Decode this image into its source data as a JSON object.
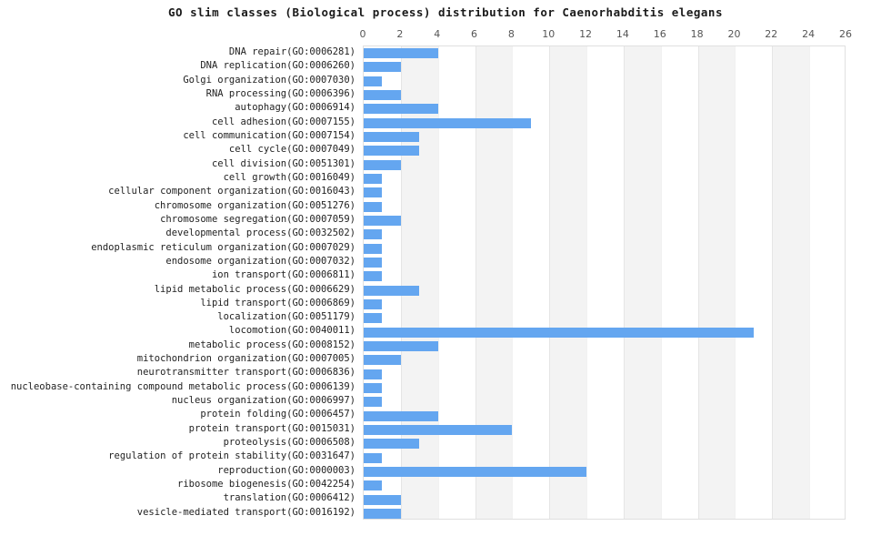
{
  "chart_data": {
    "type": "bar",
    "orientation": "horizontal",
    "title": "GO slim classes (Biological process) distribution for Caenorhabditis elegans",
    "xlabel": "",
    "ylabel": "",
    "xlim": [
      0,
      26
    ],
    "x_ticks": [
      0,
      2,
      4,
      6,
      8,
      10,
      12,
      14,
      16,
      18,
      20,
      22,
      24,
      26
    ],
    "x_axis_position": "top",
    "grid": "alternating vertical bands every 2 units",
    "legend": null,
    "bar_color": "#64a6f0",
    "band_color": "#f3f3f3",
    "background_color": "#ffffff",
    "plot_border_color": "#e0e0e0",
    "tick_text_color": "#555555",
    "label_text_color": "#222222",
    "categories": [
      "DNA repair(GO:0006281)",
      "DNA replication(GO:0006260)",
      "Golgi organization(GO:0007030)",
      "RNA processing(GO:0006396)",
      "autophagy(GO:0006914)",
      "cell adhesion(GO:0007155)",
      "cell communication(GO:0007154)",
      "cell cycle(GO:0007049)",
      "cell division(GO:0051301)",
      "cell growth(GO:0016049)",
      "cellular component organization(GO:0016043)",
      "chromosome organization(GO:0051276)",
      "chromosome segregation(GO:0007059)",
      "developmental process(GO:0032502)",
      "endoplasmic reticulum organization(GO:0007029)",
      "endosome organization(GO:0007032)",
      "ion transport(GO:0006811)",
      "lipid metabolic process(GO:0006629)",
      "lipid transport(GO:0006869)",
      "localization(GO:0051179)",
      "locomotion(GO:0040011)",
      "metabolic process(GO:0008152)",
      "mitochondrion organization(GO:0007005)",
      "neurotransmitter transport(GO:0006836)",
      "nucleobase-containing compound metabolic process(GO:0006139)",
      "nucleus organization(GO:0006997)",
      "protein folding(GO:0006457)",
      "protein transport(GO:0015031)",
      "proteolysis(GO:0006508)",
      "regulation of protein stability(GO:0031647)",
      "reproduction(GO:0000003)",
      "ribosome biogenesis(GO:0042254)",
      "translation(GO:0006412)",
      "vesicle-mediated transport(GO:0016192)"
    ],
    "values": [
      4,
      2,
      1,
      2,
      4,
      9,
      3,
      3,
      2,
      1,
      1,
      1,
      2,
      1,
      1,
      1,
      1,
      3,
      1,
      1,
      21,
      4,
      2,
      1,
      1,
      1,
      4,
      8,
      3,
      1,
      12,
      1,
      2,
      2
    ]
  }
}
